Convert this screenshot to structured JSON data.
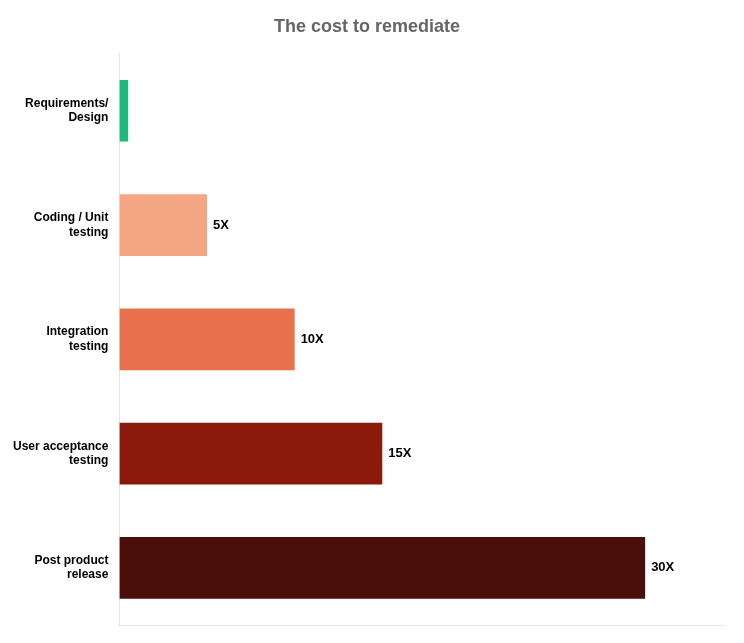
{
  "chart_data": {
    "type": "bar",
    "orientation": "horizontal",
    "title": "The cost to remediate",
    "categories": [
      "Requirements/\nDesign",
      "Coding / Unit\ntesting",
      "Integration\ntesting",
      "User acceptance\ntesting",
      "Post product\nrelease"
    ],
    "values": [
      0.5,
      5,
      10,
      15,
      30
    ],
    "value_labels": [
      null,
      "5X",
      "10X",
      "15X",
      "30X"
    ],
    "data_labels": true,
    "colors": [
      "#1db87a",
      "#f4a582",
      "#e8704a",
      "#8b1a0a",
      "#4a0f08"
    ],
    "xlim": [
      0,
      34.5
    ],
    "tick_labels": "y",
    "grid": false
  }
}
